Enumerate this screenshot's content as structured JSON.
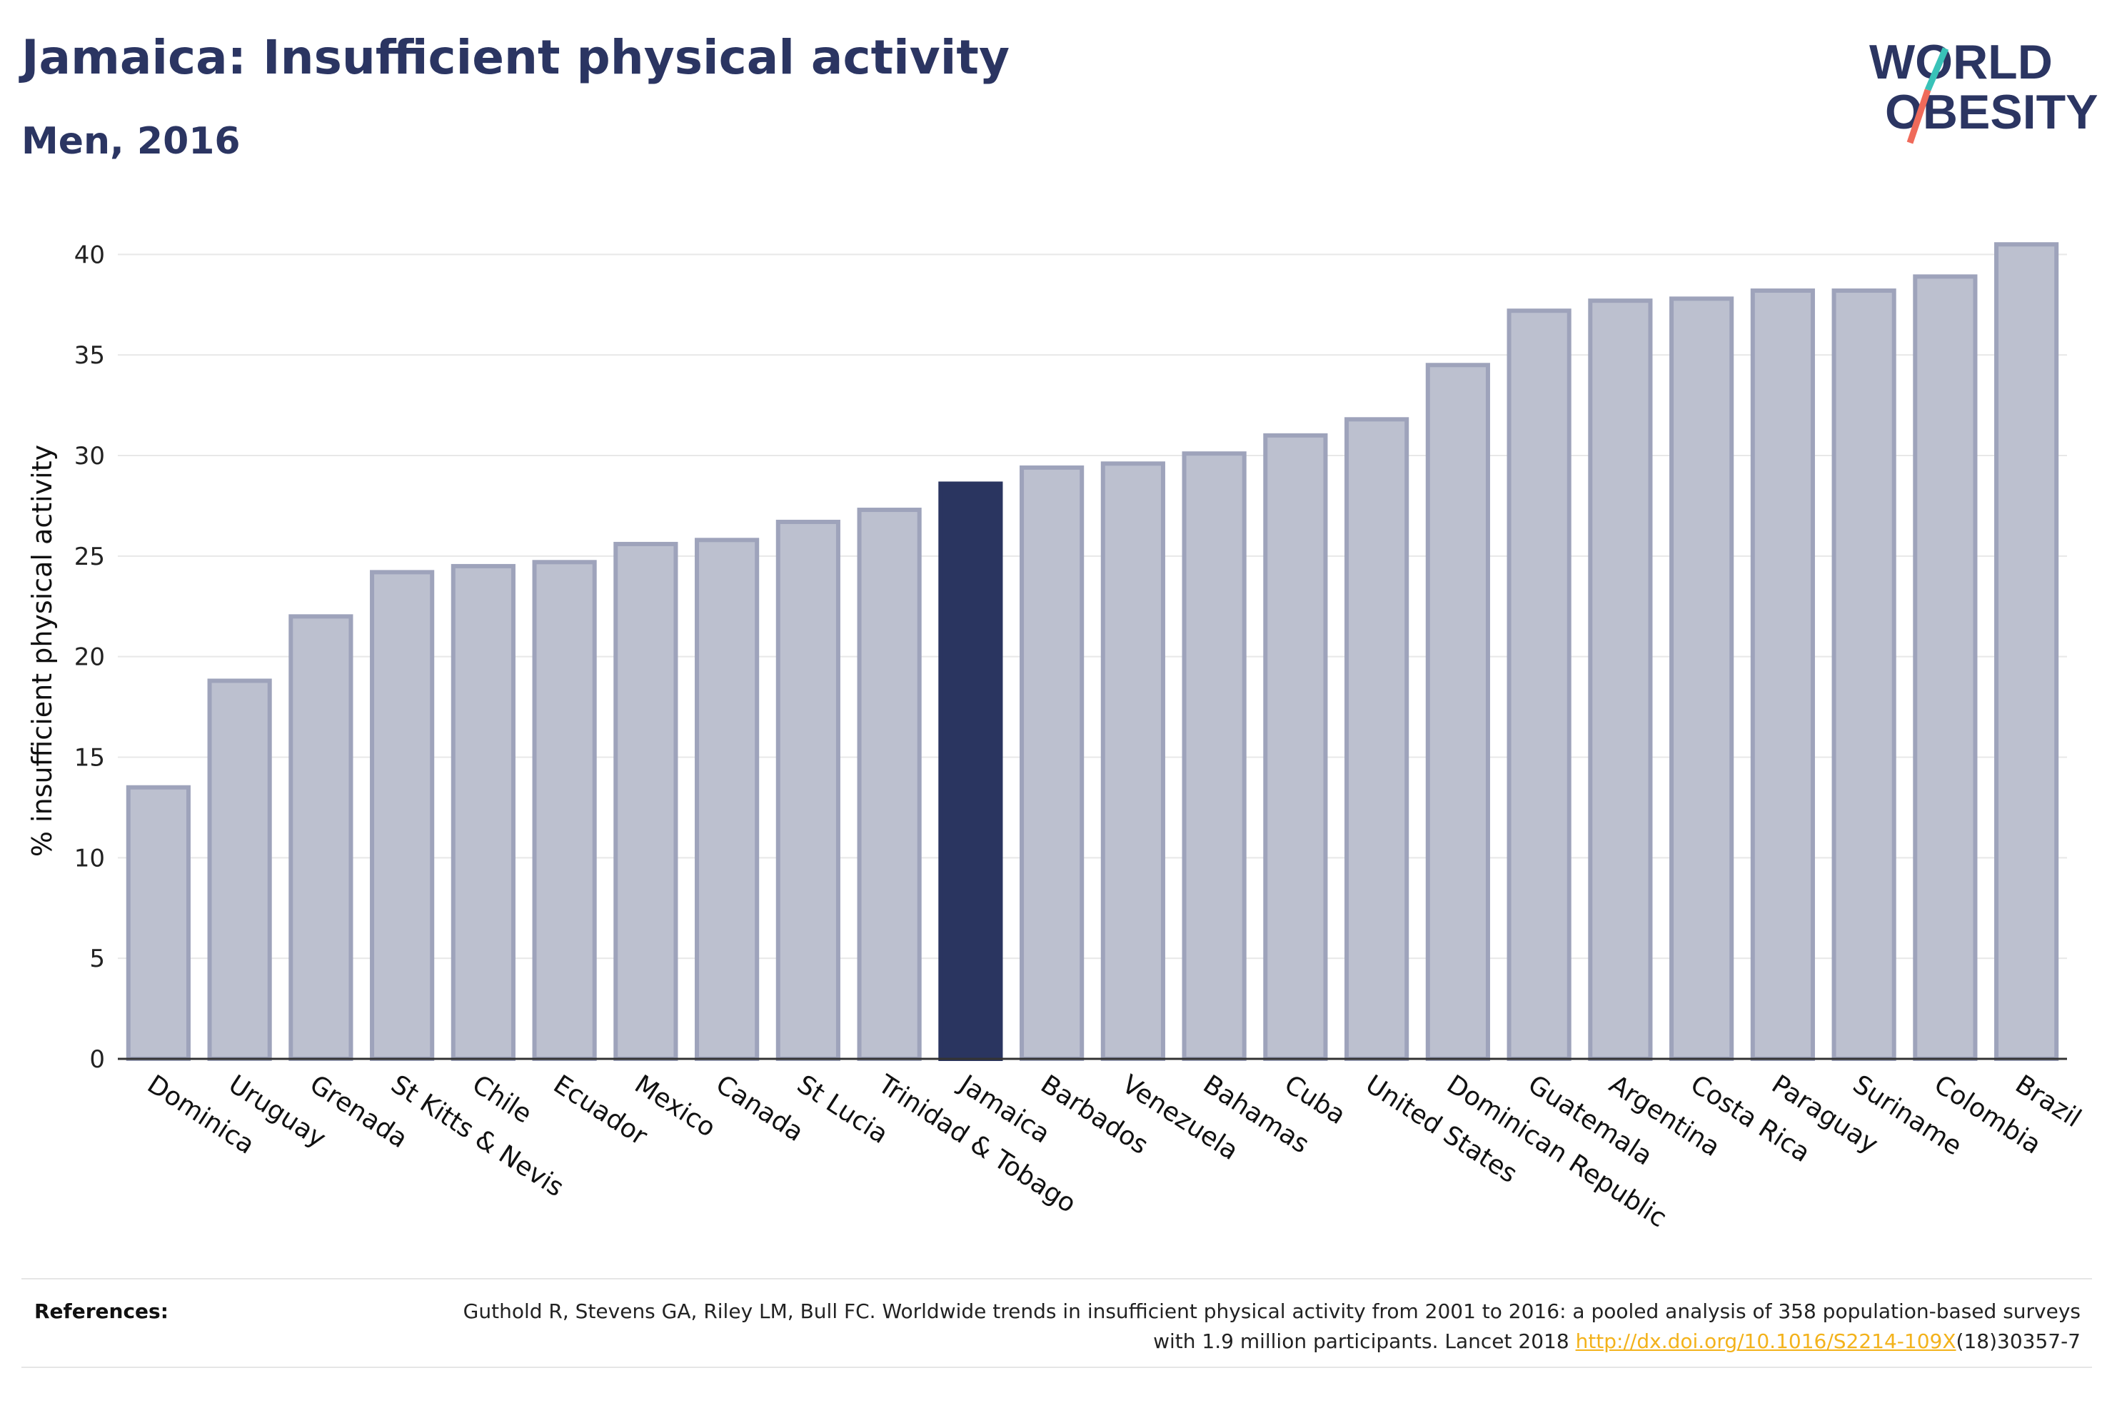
{
  "title": "Jamaica: Insufficient physical activity",
  "subtitle": "Men, 2016",
  "logo": {
    "line1": "WORLD",
    "line2": "OBESITY"
  },
  "chart_data": {
    "type": "bar",
    "title": "Jamaica: Insufficient physical activity",
    "subtitle": "Men, 2016",
    "xlabel": "",
    "ylabel": "% insufficient physical activity",
    "ylim": [
      0,
      42
    ],
    "yticks": [
      0,
      5,
      10,
      15,
      20,
      25,
      30,
      35,
      40
    ],
    "grid": true,
    "highlight": "Jamaica",
    "colors": {
      "bar": "#bcc0cf",
      "bar_edge": "#9ea3bb",
      "highlight": "#2a3560"
    },
    "categories": [
      "Dominica",
      "Uruguay",
      "Grenada",
      "St Kitts & Nevis",
      "Chile",
      "Ecuador",
      "Mexico",
      "Canada",
      "St Lucia",
      "Trinidad & Tobago",
      "Jamaica",
      "Barbados",
      "Venezuela",
      "Bahamas",
      "Cuba",
      "United States",
      "Dominican Republic",
      "Guatemala",
      "Argentina",
      "Costa Rica",
      "Paraguay",
      "Suriname",
      "Colombia",
      "Brazil"
    ],
    "values": [
      13.5,
      18.8,
      22.0,
      24.2,
      24.5,
      24.7,
      25.6,
      25.8,
      26.7,
      27.3,
      28.6,
      29.4,
      29.6,
      30.1,
      31.0,
      31.8,
      34.5,
      37.2,
      37.7,
      37.8,
      38.2,
      38.2,
      38.9,
      40.5
    ]
  },
  "references": {
    "label": "References:",
    "text_before": "Guthold R, Stevens GA, Riley LM, Bull FC. Worldwide trends in insufficient physical activity from 2001 to 2016: a pooled analysis of 358 population-based surveys with 1.9 million participants. Lancet 2018 ",
    "link": "http://dx.doi.org/10.1016/S2214-109X",
    "text_after": "(18)30357-7",
    "link_color": "#f3b21b"
  }
}
